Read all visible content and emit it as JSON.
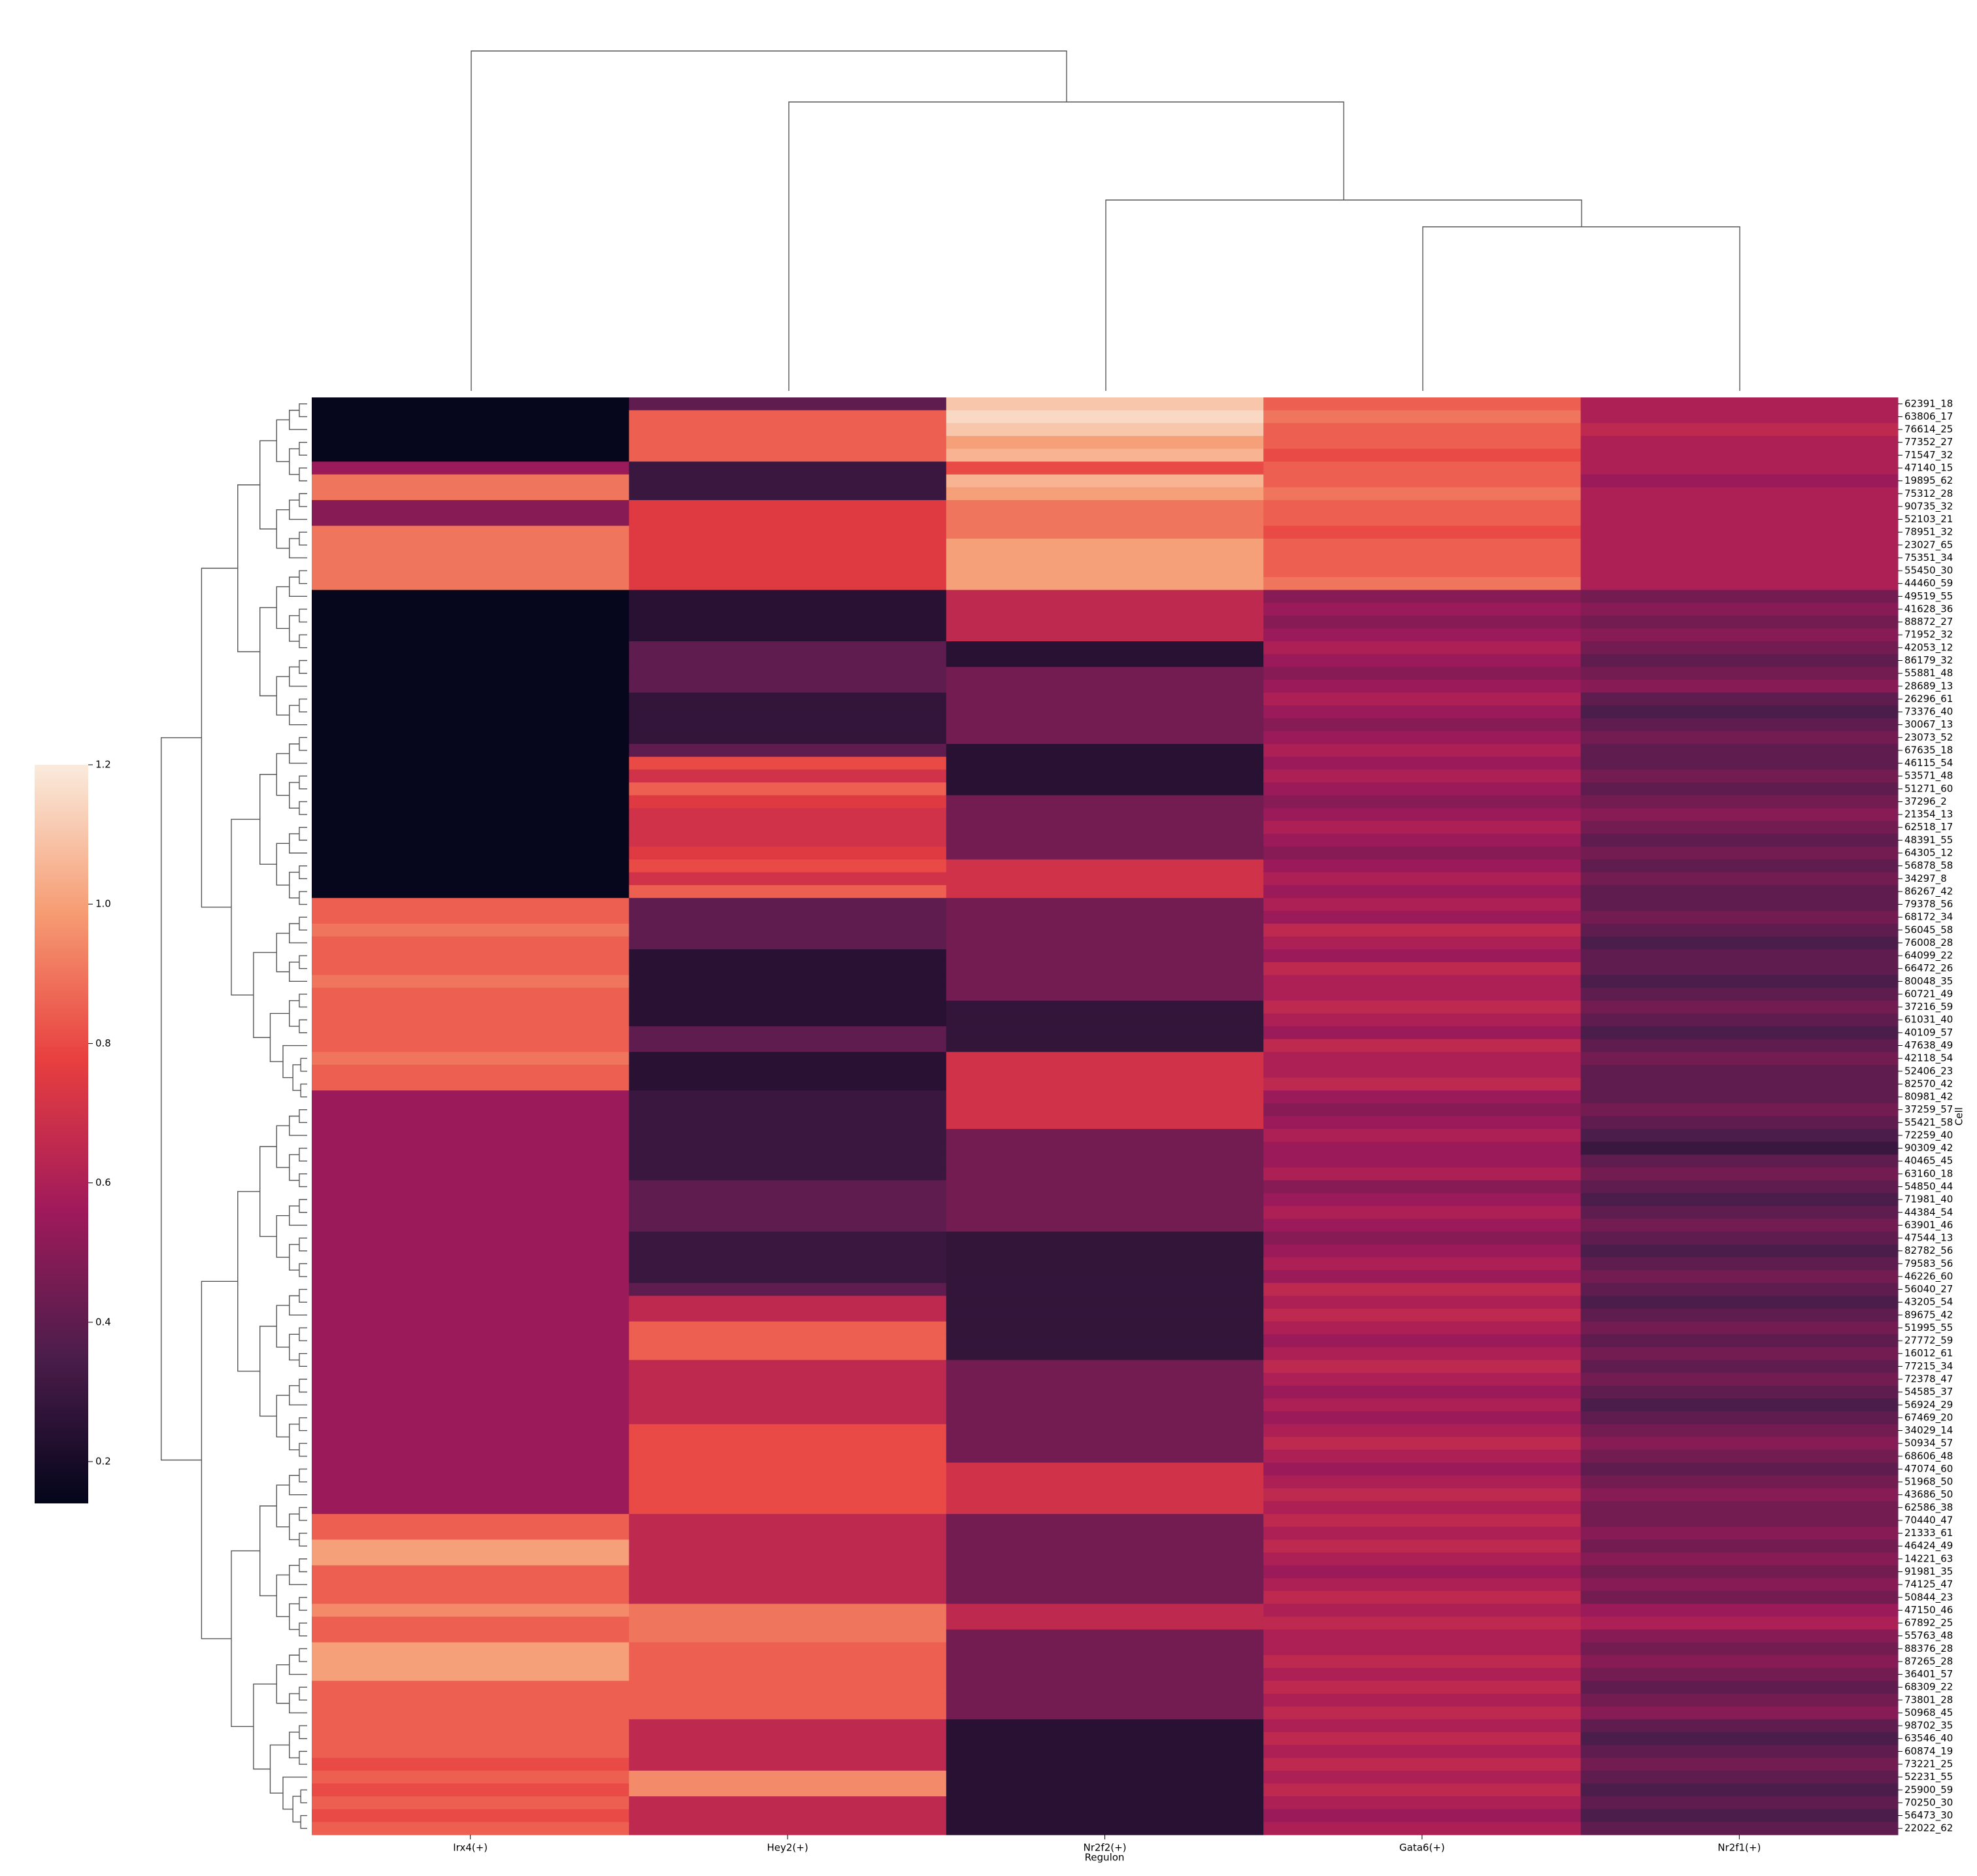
{
  "chart_data": {
    "type": "heatmap",
    "x_label": "Regulon",
    "y_label": "Cell",
    "categories": [
      "Irx4(+)",
      "Hey2(+)",
      "Nr2f2(+)",
      "Gata6(+)",
      "Nr2f1(+)"
    ],
    "rows": [
      "62391_18",
      "63806_17",
      "76614_25",
      "77352_27",
      "71547_32",
      "47140_15",
      "19895_62",
      "75312_28",
      "90735_32",
      "52103_21",
      "78951_32",
      "23027_65",
      "75351_34",
      "55450_30",
      "44460_59",
      "49519_55",
      "41628_36",
      "88872_27",
      "71952_32",
      "42053_12",
      "86179_32",
      "55881_48",
      "28689_13",
      "26296_61",
      "73376_40",
      "30067_13",
      "23073_52",
      "67635_18",
      "46115_54",
      "53571_48",
      "51271_60",
      "37296_2",
      "21354_13",
      "62518_17",
      "48391_55",
      "64305_12",
      "56878_58",
      "34297_8",
      "86267_42",
      "79378_56",
      "68172_34",
      "56045_58",
      "76008_28",
      "64099_22",
      "66472_26",
      "80048_35",
      "60721_49",
      "37216_59",
      "61031_40",
      "40109_57",
      "47638_49",
      "42118_54",
      "52406_23",
      "82570_42",
      "80981_42",
      "37259_57",
      "55421_58",
      "72259_40",
      "90309_42",
      "40465_45",
      "63160_18",
      "54850_44",
      "71981_40",
      "44384_54",
      "63901_46",
      "47544_13",
      "82782_56",
      "79583_56",
      "46226_60",
      "56040_27",
      "43205_54",
      "89675_42",
      "51995_55",
      "27772_59",
      "16012_61",
      "77215_34",
      "72378_47",
      "54585_37",
      "56924_29",
      "67469_20",
      "34029_14",
      "50934_57",
      "68606_48",
      "47074_60",
      "51968_50",
      "43686_50",
      "62586_38",
      "70440_47",
      "21333_61",
      "46424_49",
      "14221_63",
      "91981_35",
      "74125_47",
      "50844_23",
      "47150_46",
      "67892_25",
      "55763_48",
      "88376_28",
      "87265_28",
      "36401_57",
      "68309_22",
      "73801_28",
      "50968_45",
      "98702_35",
      "63546_40",
      "60874_19",
      "73221_25",
      "52231_55",
      "25900_59",
      "70250_30",
      "56473_30",
      "22022_62"
    ],
    "values": [
      [
        0.15,
        0.15,
        0.15,
        0.15,
        0.15,
        0.55,
        0.9,
        0.9,
        0.5,
        0.5,
        0.9,
        0.9,
        0.9,
        0.9,
        0.9,
        0.15,
        0.15,
        0.15,
        0.15,
        0.15,
        0.15,
        0.15,
        0.15,
        0.15,
        0.15,
        0.15,
        0.15,
        0.15,
        0.15,
        0.15,
        0.15,
        0.15,
        0.15,
        0.15,
        0.15,
        0.15,
        0.15,
        0.15,
        0.15,
        0.85,
        0.85,
        0.9,
        0.85,
        0.85,
        0.85,
        0.9,
        0.85,
        0.85,
        0.85,
        0.85,
        0.85,
        0.9,
        0.85,
        0.85,
        0.55,
        0.55,
        0.55,
        0.55,
        0.55,
        0.55,
        0.55,
        0.55,
        0.55,
        0.55,
        0.55,
        0.55,
        0.55,
        0.55,
        0.55,
        0.55,
        0.55,
        0.55,
        0.55,
        0.55,
        0.55,
        0.55,
        0.55,
        0.55,
        0.55,
        0.55,
        0.55,
        0.55,
        0.55,
        0.55,
        0.55,
        0.55,
        0.55,
        0.85,
        0.85,
        1.0,
        1.0,
        0.85,
        0.85,
        0.85,
        0.95,
        0.85,
        0.85,
        1.0,
        1.0,
        1.0,
        0.85,
        0.85,
        0.85,
        0.85,
        0.85,
        0.85,
        0.8,
        0.85,
        0.8,
        0.85,
        0.8,
        0.85
      ],
      [
        0.4,
        0.85,
        0.85,
        0.85,
        0.85,
        0.3,
        0.3,
        0.3,
        0.75,
        0.75,
        0.75,
        0.75,
        0.75,
        0.75,
        0.75,
        0.25,
        0.25,
        0.25,
        0.25,
        0.4,
        0.4,
        0.4,
        0.4,
        0.28,
        0.28,
        0.28,
        0.28,
        0.4,
        0.8,
        0.7,
        0.85,
        0.75,
        0.7,
        0.7,
        0.7,
        0.75,
        0.8,
        0.7,
        0.85,
        0.4,
        0.4,
        0.4,
        0.4,
        0.25,
        0.25,
        0.25,
        0.25,
        0.25,
        0.25,
        0.4,
        0.4,
        0.25,
        0.25,
        0.25,
        0.3,
        0.3,
        0.3,
        0.3,
        0.3,
        0.3,
        0.3,
        0.4,
        0.4,
        0.4,
        0.4,
        0.3,
        0.3,
        0.3,
        0.3,
        0.4,
        0.65,
        0.65,
        0.85,
        0.85,
        0.85,
        0.65,
        0.65,
        0.65,
        0.65,
        0.65,
        0.8,
        0.8,
        0.8,
        0.8,
        0.8,
        0.8,
        0.8,
        0.65,
        0.65,
        0.65,
        0.65,
        0.65,
        0.65,
        0.65,
        0.9,
        0.9,
        0.9,
        0.85,
        0.85,
        0.85,
        0.85,
        0.85,
        0.85,
        0.65,
        0.65,
        0.65,
        0.65,
        0.95,
        0.95,
        0.65,
        0.65,
        0.65
      ],
      [
        1.1,
        1.15,
        1.1,
        1.0,
        1.05,
        0.8,
        1.05,
        1.0,
        0.9,
        0.9,
        0.9,
        1.0,
        1.0,
        1.0,
        1.0,
        0.65,
        0.65,
        0.65,
        0.65,
        0.25,
        0.25,
        0.45,
        0.45,
        0.45,
        0.45,
        0.45,
        0.45,
        0.25,
        0.25,
        0.25,
        0.25,
        0.45,
        0.45,
        0.45,
        0.45,
        0.45,
        0.7,
        0.7,
        0.7,
        0.45,
        0.45,
        0.45,
        0.45,
        0.45,
        0.45,
        0.45,
        0.45,
        0.28,
        0.28,
        0.28,
        0.28,
        0.7,
        0.7,
        0.7,
        0.7,
        0.7,
        0.7,
        0.45,
        0.45,
        0.45,
        0.45,
        0.45,
        0.45,
        0.45,
        0.45,
        0.28,
        0.28,
        0.28,
        0.28,
        0.28,
        0.28,
        0.28,
        0.28,
        0.28,
        0.28,
        0.45,
        0.45,
        0.45,
        0.45,
        0.45,
        0.45,
        0.45,
        0.45,
        0.7,
        0.7,
        0.7,
        0.7,
        0.45,
        0.45,
        0.45,
        0.45,
        0.45,
        0.45,
        0.45,
        0.65,
        0.65,
        0.45,
        0.45,
        0.45,
        0.45,
        0.45,
        0.45,
        0.45,
        0.25,
        0.25,
        0.25,
        0.25,
        0.25,
        0.25,
        0.25,
        0.25,
        0.25
      ],
      [
        0.85,
        0.9,
        0.85,
        0.85,
        0.8,
        0.85,
        0.85,
        0.9,
        0.85,
        0.85,
        0.8,
        0.85,
        0.85,
        0.85,
        0.9,
        0.5,
        0.55,
        0.5,
        0.55,
        0.6,
        0.55,
        0.5,
        0.55,
        0.6,
        0.55,
        0.5,
        0.55,
        0.6,
        0.55,
        0.6,
        0.55,
        0.5,
        0.55,
        0.6,
        0.55,
        0.5,
        0.55,
        0.6,
        0.55,
        0.6,
        0.55,
        0.65,
        0.6,
        0.55,
        0.65,
        0.6,
        0.6,
        0.65,
        0.6,
        0.55,
        0.65,
        0.6,
        0.6,
        0.65,
        0.55,
        0.5,
        0.55,
        0.6,
        0.55,
        0.55,
        0.6,
        0.5,
        0.55,
        0.6,
        0.55,
        0.5,
        0.55,
        0.6,
        0.55,
        0.65,
        0.6,
        0.65,
        0.6,
        0.55,
        0.6,
        0.65,
        0.6,
        0.55,
        0.6,
        0.55,
        0.6,
        0.65,
        0.6,
        0.55,
        0.6,
        0.65,
        0.6,
        0.65,
        0.6,
        0.65,
        0.6,
        0.55,
        0.6,
        0.65,
        0.6,
        0.65,
        0.6,
        0.6,
        0.65,
        0.6,
        0.65,
        0.6,
        0.65,
        0.6,
        0.65,
        0.6,
        0.65,
        0.6,
        0.65,
        0.6,
        0.55,
        0.6
      ],
      [
        0.6,
        0.6,
        0.65,
        0.6,
        0.6,
        0.6,
        0.55,
        0.6,
        0.6,
        0.6,
        0.6,
        0.6,
        0.6,
        0.6,
        0.6,
        0.45,
        0.5,
        0.45,
        0.5,
        0.45,
        0.4,
        0.45,
        0.5,
        0.4,
        0.35,
        0.4,
        0.45,
        0.4,
        0.4,
        0.45,
        0.4,
        0.45,
        0.5,
        0.45,
        0.4,
        0.45,
        0.4,
        0.45,
        0.4,
        0.4,
        0.45,
        0.4,
        0.35,
        0.4,
        0.4,
        0.35,
        0.4,
        0.45,
        0.4,
        0.35,
        0.4,
        0.45,
        0.4,
        0.4,
        0.4,
        0.45,
        0.4,
        0.35,
        0.3,
        0.4,
        0.45,
        0.4,
        0.35,
        0.4,
        0.45,
        0.4,
        0.35,
        0.4,
        0.45,
        0.4,
        0.35,
        0.4,
        0.45,
        0.4,
        0.45,
        0.4,
        0.45,
        0.4,
        0.35,
        0.4,
        0.45,
        0.5,
        0.45,
        0.4,
        0.45,
        0.5,
        0.45,
        0.45,
        0.5,
        0.45,
        0.5,
        0.45,
        0.5,
        0.45,
        0.55,
        0.6,
        0.5,
        0.45,
        0.5,
        0.45,
        0.4,
        0.45,
        0.5,
        0.4,
        0.35,
        0.4,
        0.45,
        0.4,
        0.35,
        0.4,
        0.35,
        0.4
      ]
    ],
    "colormap": [
      "#03051a",
      "#4c1d4b",
      "#a11a5b",
      "#e83f3f",
      "#f69c73",
      "#faebdd"
    ],
    "colorbar_lim": [
      0.14,
      1.2
    ],
    "colorbar_ticks": [
      0.2,
      0.4,
      0.6,
      0.8,
      {
        "value": 1,
        "label": "1.0"
      },
      1.2
    ]
  }
}
